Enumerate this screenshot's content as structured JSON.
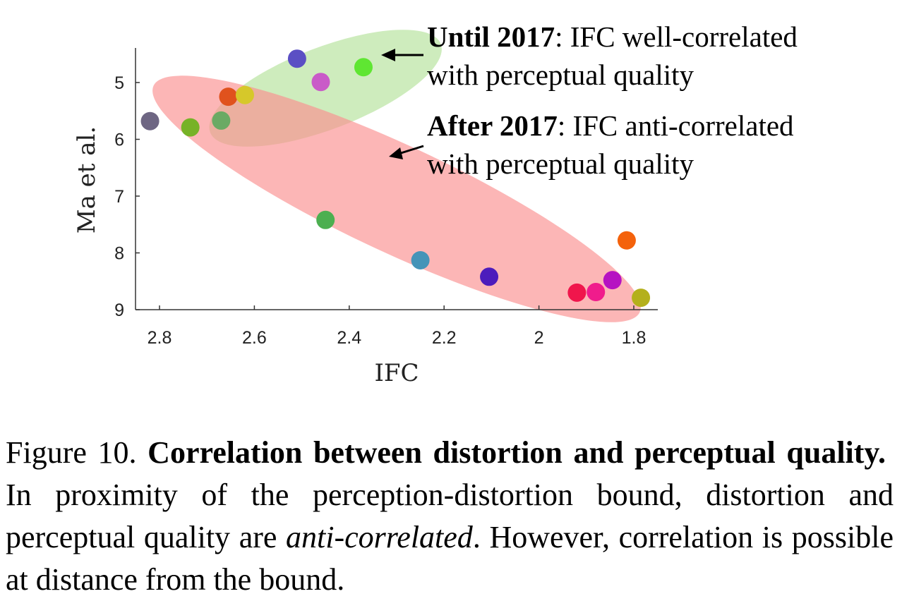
{
  "chart_data": {
    "type": "scatter",
    "xlabel": "IFC",
    "ylabel": "Ma et al.",
    "x_reversed": true,
    "y_reversed": true,
    "xlim": [
      1.75,
      2.84
    ],
    "ylim": [
      4.4,
      9.0
    ],
    "x_ticks": [
      2.8,
      2.6,
      2.4,
      2.2,
      2,
      1.8
    ],
    "x_tick_labels": [
      "2.8",
      "2.6",
      "2.4",
      "2.2",
      "2",
      "1.8"
    ],
    "y_ticks": [
      5,
      6,
      7,
      8,
      9
    ],
    "y_tick_labels": [
      "5",
      "6",
      "7",
      "8",
      "9"
    ],
    "grid": false,
    "points": [
      {
        "x": 2.51,
        "y": 4.58,
        "color": "#5b4fc4"
      },
      {
        "x": 2.37,
        "y": 4.73,
        "color": "#5fe632"
      },
      {
        "x": 2.46,
        "y": 4.99,
        "color": "#c95bc8"
      },
      {
        "x": 2.655,
        "y": 5.25,
        "color": "#e0521d"
      },
      {
        "x": 2.62,
        "y": 5.22,
        "color": "#d6c82a"
      },
      {
        "x": 2.82,
        "y": 5.68,
        "color": "#6e6683"
      },
      {
        "x": 2.735,
        "y": 5.79,
        "color": "#77b227"
      },
      {
        "x": 2.67,
        "y": 5.67,
        "color": "#6aaa64"
      },
      {
        "x": 2.45,
        "y": 7.42,
        "color": "#4caf50"
      },
      {
        "x": 2.25,
        "y": 8.13,
        "color": "#4594b8"
      },
      {
        "x": 2.105,
        "y": 8.42,
        "color": "#4c1cbc"
      },
      {
        "x": 1.92,
        "y": 8.7,
        "color": "#f0164c"
      },
      {
        "x": 1.88,
        "y": 8.69,
        "color": "#f01c8c"
      },
      {
        "x": 1.845,
        "y": 8.48,
        "color": "#b612c2"
      },
      {
        "x": 1.815,
        "y": 7.78,
        "color": "#f4620c"
      },
      {
        "x": 1.785,
        "y": 8.79,
        "color": "#b4b01c"
      }
    ],
    "regions": [
      {
        "name": "until_2017",
        "color": "#b4e29a",
        "cx": 2.45,
        "cy": 5.1,
        "rx_data": 0.56,
        "ry_data": 0.58
      },
      {
        "name": "after_2017",
        "color": "#fb8f8f",
        "cx": 2.3,
        "cy": 7.05,
        "rx_data": 0.66,
        "ry_data": 0.62
      }
    ],
    "annotations": [
      {
        "bold": "Until 2017",
        "rest": ": IFC well-correlated",
        "line2": "with perceptual quality"
      },
      {
        "bold": "After 2017",
        "rest": ": IFC anti-correlated",
        "line2": "with perceptual quality"
      }
    ]
  },
  "caption": {
    "prefix": "Figure 10. ",
    "bold_title": "Correlation between distortion and perceptual quality.",
    "text1": "In proximity of the perception-distortion bound, distortion and perceptual quality are ",
    "italic": "anti-correlated",
    "text2": ".  However, correlation is possible at distance from the bound."
  }
}
